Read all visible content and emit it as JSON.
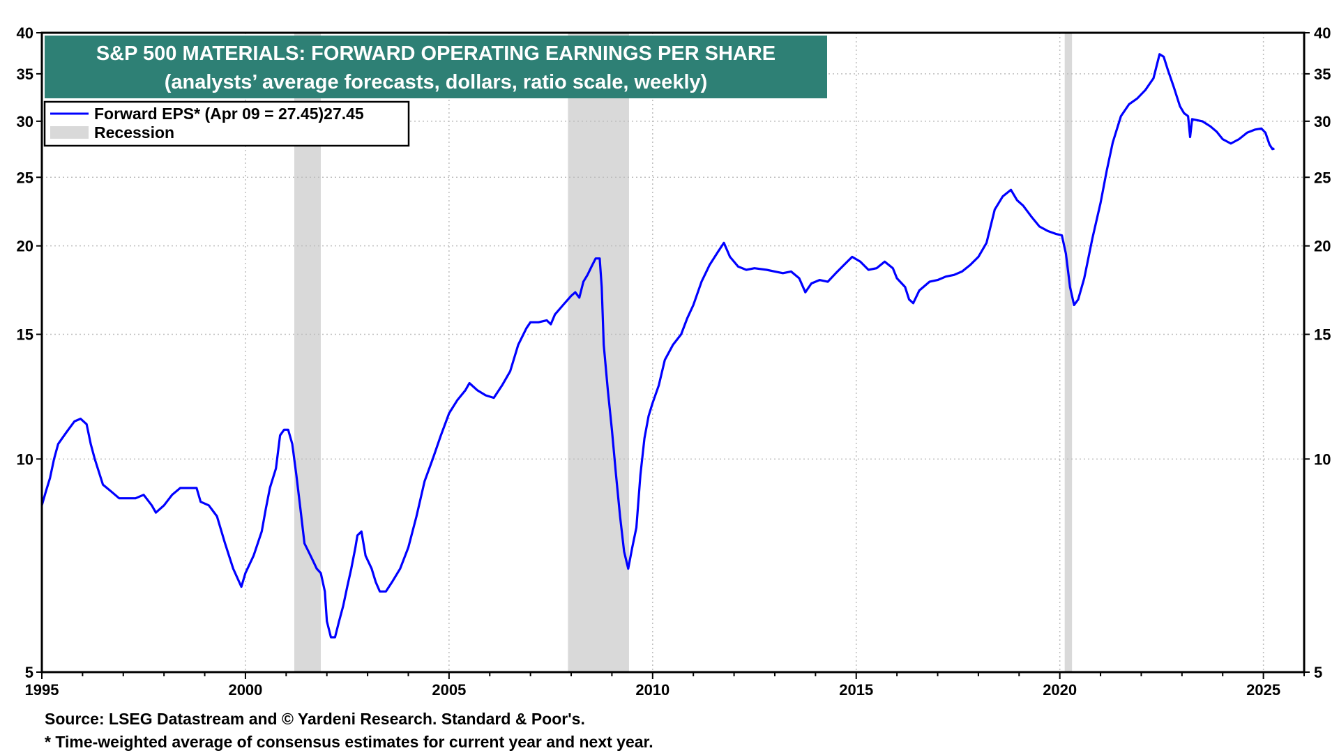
{
  "chart_data": {
    "type": "line",
    "title": "S&P 500 MATERIALS: FORWARD OPERATING EARNINGS PER SHARE",
    "subtitle": "(analysts’ average forecasts, dollars, ratio scale, weekly)",
    "xlabel": "",
    "ylabel": "",
    "y_scale": "log",
    "ylim": [
      5,
      40
    ],
    "xlim": [
      1995.0,
      2026.0
    ],
    "y_ticks": [
      5,
      10,
      15,
      20,
      25,
      30,
      35,
      40
    ],
    "x_ticks": [
      1995,
      2000,
      2005,
      2010,
      2015,
      2020,
      2025
    ],
    "grid": true,
    "legend_position": "top-left",
    "legend": [
      {
        "label": "Forward EPS* (Apr 09 = 27.45)27.45",
        "color": "#0000ff",
        "kind": "line"
      },
      {
        "label": "Recession",
        "color": "#d9d9d9",
        "kind": "band"
      }
    ],
    "recessions": [
      {
        "start": 2001.2,
        "end": 2001.85
      },
      {
        "start": 2007.92,
        "end": 2009.42
      },
      {
        "start": 2020.12,
        "end": 2020.3
      }
    ],
    "series": [
      {
        "name": "Forward EPS* (Apr 09 = 27.45)27.45",
        "color": "#0000ff",
        "points": [
          [
            1995.0,
            8.6
          ],
          [
            1995.1,
            9.0
          ],
          [
            1995.2,
            9.4
          ],
          [
            1995.3,
            10.0
          ],
          [
            1995.4,
            10.5
          ],
          [
            1995.6,
            10.9
          ],
          [
            1995.8,
            11.3
          ],
          [
            1995.95,
            11.4
          ],
          [
            1996.1,
            11.2
          ],
          [
            1996.2,
            10.5
          ],
          [
            1996.3,
            10.0
          ],
          [
            1996.5,
            9.2
          ],
          [
            1996.7,
            9.0
          ],
          [
            1996.9,
            8.8
          ],
          [
            1997.1,
            8.8
          ],
          [
            1997.3,
            8.8
          ],
          [
            1997.5,
            8.9
          ],
          [
            1997.7,
            8.6
          ],
          [
            1997.8,
            8.4
          ],
          [
            1998.0,
            8.6
          ],
          [
            1998.2,
            8.9
          ],
          [
            1998.4,
            9.1
          ],
          [
            1998.6,
            9.1
          ],
          [
            1998.8,
            9.1
          ],
          [
            1998.9,
            8.7
          ],
          [
            1999.1,
            8.6
          ],
          [
            1999.3,
            8.3
          ],
          [
            1999.5,
            7.6
          ],
          [
            1999.7,
            7.0
          ],
          [
            1999.9,
            6.6
          ],
          [
            2000.0,
            6.9
          ],
          [
            2000.2,
            7.3
          ],
          [
            2000.4,
            7.9
          ],
          [
            2000.5,
            8.5
          ],
          [
            2000.6,
            9.1
          ],
          [
            2000.75,
            9.7
          ],
          [
            2000.85,
            10.8
          ],
          [
            2000.95,
            11.0
          ],
          [
            2001.05,
            11.0
          ],
          [
            2001.15,
            10.5
          ],
          [
            2001.25,
            9.5
          ],
          [
            2001.35,
            8.5
          ],
          [
            2001.45,
            7.6
          ],
          [
            2001.55,
            7.4
          ],
          [
            2001.65,
            7.2
          ],
          [
            2001.75,
            7.0
          ],
          [
            2001.85,
            6.9
          ],
          [
            2001.95,
            6.5
          ],
          [
            2002.0,
            5.9
          ],
          [
            2002.1,
            5.6
          ],
          [
            2002.2,
            5.6
          ],
          [
            2002.3,
            5.9
          ],
          [
            2002.4,
            6.2
          ],
          [
            2002.5,
            6.6
          ],
          [
            2002.6,
            7.0
          ],
          [
            2002.7,
            7.5
          ],
          [
            2002.75,
            7.8
          ],
          [
            2002.85,
            7.9
          ],
          [
            2002.95,
            7.3
          ],
          [
            2003.1,
            7.0
          ],
          [
            2003.2,
            6.7
          ],
          [
            2003.3,
            6.5
          ],
          [
            2003.45,
            6.5
          ],
          [
            2003.6,
            6.7
          ],
          [
            2003.8,
            7.0
          ],
          [
            2004.0,
            7.5
          ],
          [
            2004.2,
            8.3
          ],
          [
            2004.4,
            9.3
          ],
          [
            2004.6,
            10.0
          ],
          [
            2004.8,
            10.8
          ],
          [
            2005.0,
            11.6
          ],
          [
            2005.2,
            12.1
          ],
          [
            2005.4,
            12.5
          ],
          [
            2005.5,
            12.8
          ],
          [
            2005.7,
            12.5
          ],
          [
            2005.9,
            12.3
          ],
          [
            2006.1,
            12.2
          ],
          [
            2006.3,
            12.7
          ],
          [
            2006.5,
            13.3
          ],
          [
            2006.7,
            14.5
          ],
          [
            2006.9,
            15.3
          ],
          [
            2007.0,
            15.6
          ],
          [
            2007.2,
            15.6
          ],
          [
            2007.4,
            15.7
          ],
          [
            2007.5,
            15.5
          ],
          [
            2007.6,
            16.0
          ],
          [
            2007.8,
            16.5
          ],
          [
            2008.0,
            17.0
          ],
          [
            2008.1,
            17.2
          ],
          [
            2008.2,
            16.9
          ],
          [
            2008.3,
            17.8
          ],
          [
            2008.4,
            18.2
          ],
          [
            2008.5,
            18.7
          ],
          [
            2008.6,
            19.2
          ],
          [
            2008.7,
            19.2
          ],
          [
            2008.75,
            17.5
          ],
          [
            2008.8,
            14.5
          ],
          [
            2008.9,
            12.5
          ],
          [
            2009.0,
            11.0
          ],
          [
            2009.1,
            9.5
          ],
          [
            2009.2,
            8.3
          ],
          [
            2009.3,
            7.4
          ],
          [
            2009.4,
            7.0
          ],
          [
            2009.5,
            7.5
          ],
          [
            2009.6,
            8.0
          ],
          [
            2009.7,
            9.5
          ],
          [
            2009.8,
            10.7
          ],
          [
            2009.9,
            11.5
          ],
          [
            2010.0,
            12.0
          ],
          [
            2010.15,
            12.7
          ],
          [
            2010.3,
            13.8
          ],
          [
            2010.5,
            14.5
          ],
          [
            2010.7,
            15.0
          ],
          [
            2010.85,
            15.8
          ],
          [
            2011.0,
            16.5
          ],
          [
            2011.2,
            17.8
          ],
          [
            2011.4,
            18.8
          ],
          [
            2011.6,
            19.6
          ],
          [
            2011.75,
            20.2
          ],
          [
            2011.9,
            19.3
          ],
          [
            2012.1,
            18.7
          ],
          [
            2012.3,
            18.5
          ],
          [
            2012.5,
            18.6
          ],
          [
            2012.8,
            18.5
          ],
          [
            2013.0,
            18.4
          ],
          [
            2013.2,
            18.3
          ],
          [
            2013.4,
            18.4
          ],
          [
            2013.6,
            18.0
          ],
          [
            2013.75,
            17.2
          ],
          [
            2013.9,
            17.7
          ],
          [
            2014.1,
            17.9
          ],
          [
            2014.3,
            17.8
          ],
          [
            2014.5,
            18.3
          ],
          [
            2014.7,
            18.8
          ],
          [
            2014.9,
            19.3
          ],
          [
            2015.1,
            19.0
          ],
          [
            2015.3,
            18.5
          ],
          [
            2015.5,
            18.6
          ],
          [
            2015.7,
            19.0
          ],
          [
            2015.9,
            18.6
          ],
          [
            2016.0,
            18.0
          ],
          [
            2016.2,
            17.5
          ],
          [
            2016.3,
            16.8
          ],
          [
            2016.4,
            16.6
          ],
          [
            2016.55,
            17.3
          ],
          [
            2016.8,
            17.8
          ],
          [
            2017.0,
            17.9
          ],
          [
            2017.2,
            18.1
          ],
          [
            2017.4,
            18.2
          ],
          [
            2017.6,
            18.4
          ],
          [
            2017.8,
            18.8
          ],
          [
            2018.0,
            19.3
          ],
          [
            2018.2,
            20.2
          ],
          [
            2018.4,
            22.5
          ],
          [
            2018.6,
            23.5
          ],
          [
            2018.8,
            24.0
          ],
          [
            2018.95,
            23.2
          ],
          [
            2019.1,
            22.8
          ],
          [
            2019.3,
            22.0
          ],
          [
            2019.5,
            21.3
          ],
          [
            2019.7,
            21.0
          ],
          [
            2019.9,
            20.8
          ],
          [
            2020.05,
            20.7
          ],
          [
            2020.15,
            19.5
          ],
          [
            2020.25,
            17.5
          ],
          [
            2020.35,
            16.5
          ],
          [
            2020.45,
            16.8
          ],
          [
            2020.6,
            18.0
          ],
          [
            2020.8,
            20.5
          ],
          [
            2021.0,
            23.0
          ],
          [
            2021.15,
            25.5
          ],
          [
            2021.3,
            28.0
          ],
          [
            2021.5,
            30.5
          ],
          [
            2021.7,
            31.7
          ],
          [
            2021.9,
            32.3
          ],
          [
            2022.1,
            33.2
          ],
          [
            2022.3,
            34.5
          ],
          [
            2022.45,
            37.3
          ],
          [
            2022.55,
            37.0
          ],
          [
            2022.65,
            35.5
          ],
          [
            2022.8,
            33.5
          ],
          [
            2022.95,
            31.5
          ],
          [
            2023.05,
            30.8
          ],
          [
            2023.15,
            30.5
          ],
          [
            2023.2,
            28.5
          ],
          [
            2023.25,
            30.2
          ],
          [
            2023.5,
            30.0
          ],
          [
            2023.7,
            29.5
          ],
          [
            2023.85,
            29.0
          ],
          [
            2024.0,
            28.3
          ],
          [
            2024.2,
            27.9
          ],
          [
            2024.4,
            28.3
          ],
          [
            2024.6,
            28.9
          ],
          [
            2024.8,
            29.2
          ],
          [
            2024.95,
            29.3
          ],
          [
            2025.05,
            28.9
          ],
          [
            2025.15,
            27.8
          ],
          [
            2025.22,
            27.4
          ],
          [
            2025.27,
            27.45
          ]
        ]
      }
    ]
  },
  "footnotes": {
    "source": "Source: LSEG Datastream and © Yardeni Research. Standard & Poor's.",
    "star": "* Time-weighted average of consensus estimates for current year and next year."
  }
}
